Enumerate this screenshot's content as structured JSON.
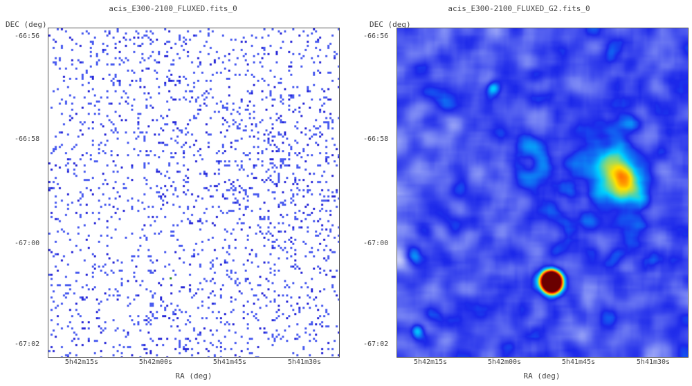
{
  "panels": [
    {
      "title": "acis_E300-2100_FLUXED.fits_0",
      "ylabel": "DEC (deg)",
      "xlabel": "RA (deg)",
      "yticks": [
        "-66:56",
        "-66:58",
        "-67:00",
        "-67:02"
      ],
      "xticks": [
        "5h42m15s",
        "5h42m00s",
        "5h41m45s",
        "5h41m30s"
      ],
      "image": "sparse-photon-events",
      "colormap": [
        "#ffffff",
        "#4a5cf0",
        "#2a2ad8"
      ]
    },
    {
      "title": "acis_E300-2100_FLUXED_G2.fits_0",
      "ylabel": "DEC (deg)",
      "xlabel": "RA (deg)",
      "yticks": [
        "-66:56",
        "-66:58",
        "-67:00",
        "-67:02"
      ],
      "xticks": [
        "5h42m15s",
        "5h42m00s",
        "5h41m45s",
        "5h41m30s"
      ],
      "image": "gaussian-smoothed-map",
      "colormap": [
        "#ffffff",
        "#7f8cf5",
        "#1c28ea",
        "#00cfff",
        "#ffe000",
        "#ff2000",
        "#6a0000"
      ]
    }
  ]
}
